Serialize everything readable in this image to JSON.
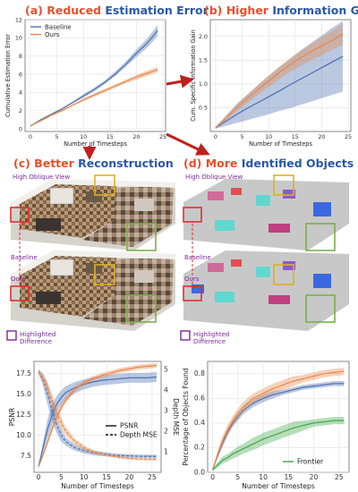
{
  "panel_titles": {
    "a": {
      "prefix": "(a) Reduced",
      "rest": " Estimation Error"
    },
    "b": {
      "prefix": "(b) Higher",
      "rest": " Information Gain"
    },
    "c": {
      "prefix": "(c) Better",
      "rest": " Reconstruction"
    },
    "d": {
      "prefix": "(d) More",
      "rest": " Identified Objects"
    }
  },
  "colors": {
    "title_accent": "#e8502a",
    "title_rest": "#2a58a8",
    "baseline": "#4a6fb0",
    "ours": "#e8884a",
    "frontier": "#3fa84a",
    "annot": "#7a2a9a",
    "highlight_red": "#e03030",
    "arrow": "#c02020"
  },
  "view_labels": {
    "c": {
      "top": "High Oblique View",
      "baseline": "Baseline",
      "ours": "Ours",
      "highlight": "Highlighted\nDifference"
    },
    "d": {
      "top": "High Oblique View",
      "baseline": "Baseline",
      "ours": "Ours",
      "highlight": "Highlighted\nDifference"
    }
  },
  "chart_data": [
    {
      "id": "a",
      "type": "line",
      "xlabel": "Number of Timesteps",
      "ylabel": "Cumulative Estimation Error",
      "xlim": [
        -1,
        25.5
      ],
      "ylim": [
        -0.3,
        12
      ],
      "xticks": [
        0,
        5,
        10,
        15,
        20,
        25
      ],
      "yticks": [
        0,
        2,
        4,
        6,
        8,
        10,
        12
      ],
      "legend": "top-left",
      "grid": true,
      "x": [
        0,
        2,
        4,
        6,
        8,
        10,
        12,
        14,
        16,
        18,
        20,
        22,
        24
      ],
      "series": [
        {
          "name": "Baseline",
          "values": [
            0.3,
            1.0,
            1.6,
            2.2,
            2.9,
            3.6,
            4.3,
            5.1,
            6.0,
            7.1,
            8.3,
            9.4,
            10.8
          ],
          "lower": [
            0.3,
            0.9,
            1.5,
            2.1,
            2.8,
            3.4,
            4.1,
            4.9,
            5.8,
            6.8,
            7.9,
            8.9,
            10.2
          ],
          "upper": [
            0.3,
            1.1,
            1.7,
            2.3,
            3.0,
            3.8,
            4.5,
            5.3,
            6.3,
            7.4,
            8.7,
            9.9,
            11.4
          ]
        },
        {
          "name": "Ours",
          "values": [
            0.3,
            0.9,
            1.5,
            2.0,
            2.6,
            3.2,
            3.7,
            4.2,
            4.7,
            5.2,
            5.7,
            6.1,
            6.5
          ],
          "lower": [
            0.3,
            0.8,
            1.4,
            1.9,
            2.5,
            3.0,
            3.5,
            4.0,
            4.5,
            5.0,
            5.4,
            5.8,
            6.2
          ],
          "upper": [
            0.3,
            1.0,
            1.6,
            2.1,
            2.7,
            3.3,
            3.9,
            4.4,
            4.9,
            5.4,
            5.9,
            6.4,
            6.8
          ]
        }
      ]
    },
    {
      "id": "b",
      "type": "line",
      "xlabel": "Number of Timesteps",
      "ylabel": "Cum. Specific Information Gain",
      "xlim": [
        -1,
        25.5
      ],
      "ylim": [
        0,
        2.35
      ],
      "xticks": [
        0,
        5,
        10,
        15,
        20,
        25
      ],
      "yticks": [
        0.5,
        1.0,
        1.5,
        2.0
      ],
      "legend": "none",
      "grid": true,
      "x": [
        0,
        2,
        4,
        6,
        8,
        10,
        12,
        14,
        16,
        18,
        20,
        22,
        24
      ],
      "series": [
        {
          "name": "Baseline",
          "values": [
            0.08,
            0.22,
            0.36,
            0.49,
            0.61,
            0.73,
            0.85,
            0.98,
            1.1,
            1.22,
            1.34,
            1.46,
            1.58
          ],
          "lower": [
            0.06,
            0.12,
            0.18,
            0.24,
            0.3,
            0.36,
            0.43,
            0.49,
            0.56,
            0.63,
            0.7,
            0.77,
            0.84
          ],
          "upper": [
            0.1,
            0.34,
            0.58,
            0.78,
            0.98,
            1.17,
            1.35,
            1.52,
            1.7,
            1.86,
            2.02,
            2.18,
            2.32
          ]
        },
        {
          "name": "Ours",
          "values": [
            0.08,
            0.28,
            0.5,
            0.7,
            0.88,
            1.06,
            1.24,
            1.4,
            1.55,
            1.68,
            1.8,
            1.92,
            2.05
          ],
          "lower": [
            0.07,
            0.24,
            0.43,
            0.61,
            0.78,
            0.94,
            1.1,
            1.25,
            1.38,
            1.5,
            1.6,
            1.72,
            1.82
          ],
          "upper": [
            0.09,
            0.33,
            0.57,
            0.78,
            0.98,
            1.18,
            1.37,
            1.54,
            1.7,
            1.84,
            1.98,
            2.12,
            2.26
          ]
        }
      ]
    },
    {
      "id": "e",
      "type": "line",
      "xlabel": "Number of Timesteps",
      "ylabel": "PSNR",
      "y2label": "Depth MSE",
      "xlim": [
        -1,
        27
      ],
      "ylim": [
        5.5,
        19
      ],
      "y2lim": [
        0,
        5.4
      ],
      "xticks": [
        0,
        5,
        10,
        15,
        20,
        25
      ],
      "yticks": [
        7.5,
        10.0,
        12.5,
        15.0,
        17.5
      ],
      "y2ticks": [
        1,
        2,
        3,
        4,
        5
      ],
      "legend": "center-right",
      "grid": true,
      "x": [
        0,
        1,
        2,
        3,
        4,
        5,
        6,
        8,
        10,
        12,
        14,
        16,
        18,
        20,
        22,
        24,
        26
      ],
      "series": [
        {
          "name": "PSNR",
          "axis": "left",
          "style": "solid",
          "role": "legend",
          "values": [
            6.2,
            8.5,
            10.8,
            12.5,
            13.8,
            14.6,
            15.2,
            15.8,
            16.2,
            16.5,
            16.7,
            16.8,
            16.9,
            17.0,
            17.0,
            17.0,
            17.1
          ],
          "lower": [
            6.1,
            7.8,
            9.6,
            11.2,
            12.8,
            13.7,
            14.4,
            15.1,
            15.6,
            15.9,
            16.1,
            16.2,
            16.3,
            16.4,
            16.4,
            16.4,
            16.5
          ],
          "upper": [
            6.3,
            9.2,
            12.0,
            13.8,
            14.8,
            15.5,
            16.0,
            16.5,
            16.8,
            17.1,
            17.3,
            17.4,
            17.5,
            17.6,
            17.6,
            17.6,
            17.7
          ]
        },
        {
          "name": "Depth MSE",
          "axis": "right",
          "style": "dashed",
          "role": "legend",
          "values": [
            4.9,
            4.5,
            3.8,
            3.0,
            2.3,
            1.8,
            1.5,
            1.2,
            1.05,
            0.95,
            0.9,
            0.85,
            0.82,
            0.8,
            0.78,
            0.78,
            0.77
          ],
          "lower": [
            4.8,
            4.2,
            3.3,
            2.5,
            1.9,
            1.5,
            1.3,
            1.05,
            0.92,
            0.84,
            0.8,
            0.76,
            0.73,
            0.72,
            0.7,
            0.7,
            0.69
          ],
          "upper": [
            5.0,
            4.8,
            4.3,
            3.5,
            2.7,
            2.1,
            1.7,
            1.35,
            1.18,
            1.06,
            1.0,
            0.94,
            0.9,
            0.88,
            0.86,
            0.86,
            0.85
          ]
        },
        {
          "axis": "left",
          "style": "solid",
          "role": "ours",
          "values": [
            6.2,
            7.6,
            9.2,
            10.8,
            12.2,
            13.4,
            14.3,
            15.6,
            16.4,
            16.9,
            17.3,
            17.6,
            17.9,
            18.1,
            18.3,
            18.4,
            18.5
          ],
          "lower": [
            6.1,
            7.4,
            8.9,
            10.4,
            11.8,
            13.0,
            13.9,
            15.3,
            16.1,
            16.6,
            17.0,
            17.3,
            17.6,
            17.8,
            18.0,
            18.1,
            18.2
          ],
          "upper": [
            6.3,
            7.8,
            9.5,
            11.2,
            12.6,
            13.8,
            14.7,
            15.9,
            16.7,
            17.2,
            17.6,
            17.9,
            18.2,
            18.4,
            18.6,
            18.7,
            18.8
          ]
        },
        {
          "axis": "right",
          "style": "dashed",
          "role": "ours",
          "values": [
            4.9,
            4.6,
            4.1,
            3.5,
            2.9,
            2.4,
            2.0,
            1.5,
            1.2,
            1.0,
            0.88,
            0.8,
            0.72,
            0.68,
            0.65,
            0.64,
            0.63
          ],
          "lower": [
            4.8,
            4.4,
            3.8,
            3.2,
            2.6,
            2.1,
            1.8,
            1.35,
            1.08,
            0.9,
            0.8,
            0.73,
            0.66,
            0.62,
            0.59,
            0.58,
            0.57
          ],
          "upper": [
            5.0,
            4.8,
            4.4,
            3.8,
            3.2,
            2.7,
            2.2,
            1.65,
            1.32,
            1.1,
            0.96,
            0.87,
            0.78,
            0.74,
            0.71,
            0.7,
            0.69
          ]
        }
      ]
    },
    {
      "id": "f",
      "type": "line",
      "xlabel": "Number of Timesteps",
      "ylabel": "Percentage of Objects Found",
      "xlim": [
        -1,
        27
      ],
      "ylim": [
        0,
        0.9
      ],
      "xticks": [
        0,
        5,
        10,
        15,
        20,
        25
      ],
      "yticks": [
        0.0,
        0.2,
        0.4,
        0.6,
        0.8
      ],
      "legend": "bottom-right",
      "grid": true,
      "x": [
        0,
        1,
        2,
        3,
        4,
        5,
        6,
        8,
        10,
        12,
        14,
        16,
        18,
        20,
        22,
        24,
        26
      ],
      "series": [
        {
          "role": "baseline",
          "values": [
            0.02,
            0.14,
            0.24,
            0.33,
            0.4,
            0.45,
            0.5,
            0.56,
            0.6,
            0.63,
            0.65,
            0.67,
            0.69,
            0.7,
            0.71,
            0.72,
            0.72
          ],
          "lower": [
            0.02,
            0.12,
            0.21,
            0.3,
            0.37,
            0.42,
            0.47,
            0.53,
            0.57,
            0.6,
            0.63,
            0.65,
            0.67,
            0.68,
            0.69,
            0.7,
            0.7
          ],
          "upper": [
            0.02,
            0.16,
            0.27,
            0.36,
            0.43,
            0.48,
            0.53,
            0.59,
            0.63,
            0.66,
            0.67,
            0.69,
            0.71,
            0.72,
            0.73,
            0.74,
            0.74
          ]
        },
        {
          "role": "ours",
          "values": [
            0.02,
            0.15,
            0.26,
            0.35,
            0.42,
            0.48,
            0.53,
            0.6,
            0.64,
            0.68,
            0.71,
            0.74,
            0.76,
            0.78,
            0.8,
            0.81,
            0.82
          ],
          "lower": [
            0.02,
            0.12,
            0.22,
            0.31,
            0.38,
            0.44,
            0.49,
            0.56,
            0.6,
            0.64,
            0.67,
            0.7,
            0.73,
            0.75,
            0.77,
            0.78,
            0.79
          ],
          "upper": [
            0.02,
            0.18,
            0.3,
            0.39,
            0.46,
            0.52,
            0.57,
            0.64,
            0.68,
            0.72,
            0.75,
            0.78,
            0.79,
            0.81,
            0.83,
            0.84,
            0.85
          ]
        },
        {
          "name": "Frontier",
          "role": "legend",
          "values": [
            0.02,
            0.06,
            0.1,
            0.12,
            0.15,
            0.17,
            0.19,
            0.23,
            0.27,
            0.3,
            0.33,
            0.36,
            0.38,
            0.4,
            0.41,
            0.42,
            0.42
          ],
          "lower": [
            0.01,
            0.04,
            0.07,
            0.09,
            0.11,
            0.13,
            0.15,
            0.18,
            0.22,
            0.25,
            0.28,
            0.31,
            0.34,
            0.37,
            0.38,
            0.39,
            0.39
          ],
          "upper": [
            0.03,
            0.08,
            0.13,
            0.15,
            0.18,
            0.21,
            0.23,
            0.28,
            0.32,
            0.35,
            0.38,
            0.41,
            0.42,
            0.43,
            0.44,
            0.45,
            0.45
          ]
        }
      ]
    }
  ]
}
